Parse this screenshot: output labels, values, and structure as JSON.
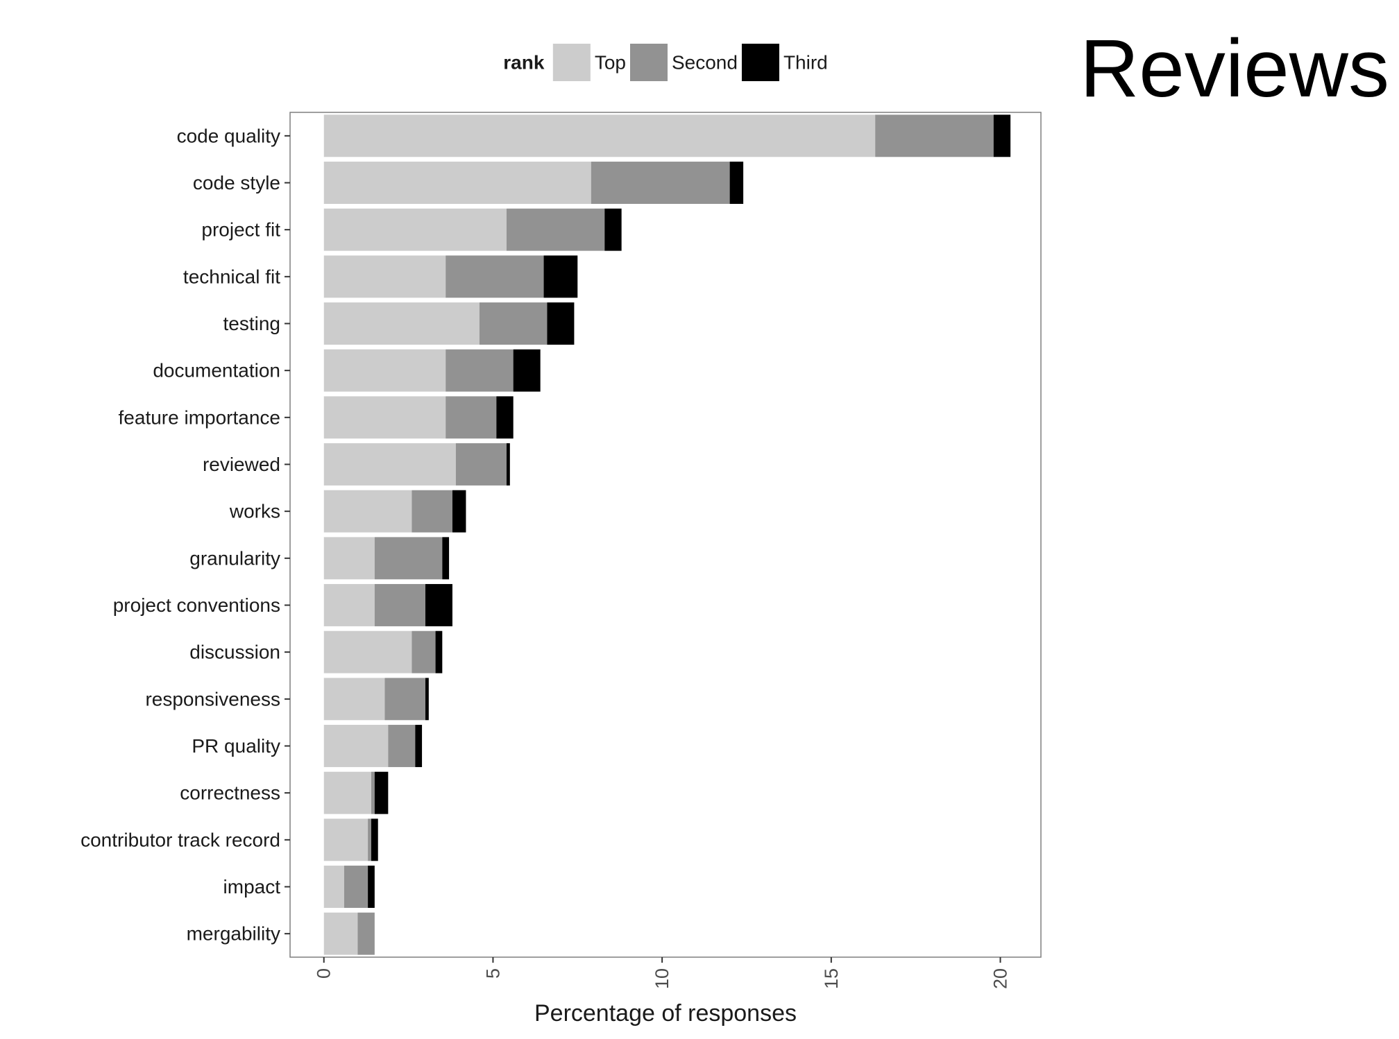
{
  "slide_title": "Reviews",
  "chart_data": {
    "type": "bar",
    "orientation": "horizontal",
    "stacked": true,
    "xlabel": "Percentage of responses",
    "ylabel": "",
    "xlim": [
      -1,
      21.2
    ],
    "x_ticks": [
      0,
      5,
      10,
      15,
      20
    ],
    "grid": false,
    "legend": {
      "title": "rank",
      "position": "top"
    },
    "categories": [
      "code quality",
      "code style",
      "project fit",
      "technical fit",
      "testing",
      "documentation",
      "feature importance",
      "reviewed",
      "works",
      "granularity",
      "project conventions",
      "discussion",
      "responsiveness",
      "PR quality",
      "correctness",
      "contributor track record",
      "impact",
      "mergability"
    ],
    "series": [
      {
        "name": "Top",
        "color": "#cccccc",
        "values": [
          16.3,
          7.9,
          5.4,
          3.6,
          4.6,
          3.6,
          3.6,
          3.9,
          2.6,
          1.5,
          1.5,
          2.6,
          1.8,
          1.9,
          1.4,
          1.3,
          0.6,
          1.0
        ]
      },
      {
        "name": "Second",
        "color": "#929292",
        "values": [
          3.5,
          4.1,
          2.9,
          2.9,
          2.0,
          2.0,
          1.5,
          1.5,
          1.2,
          2.0,
          1.5,
          0.7,
          1.2,
          0.8,
          0.1,
          0.1,
          0.7,
          0.5
        ]
      },
      {
        "name": "Third",
        "color": "#000000",
        "values": [
          0.5,
          0.4,
          0.5,
          1.0,
          0.8,
          0.8,
          0.5,
          0.1,
          0.4,
          0.2,
          0.8,
          0.2,
          0.1,
          0.2,
          0.4,
          0.2,
          0.2,
          0.0
        ]
      }
    ]
  }
}
